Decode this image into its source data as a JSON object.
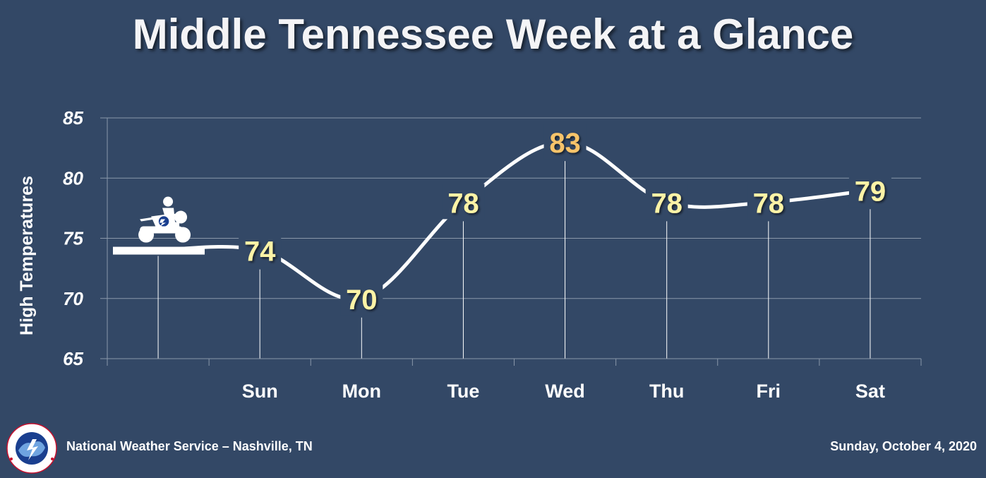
{
  "title": "Middle Tennessee Week at a Glance",
  "footer": {
    "source": "National Weather Service – Nashville, TN",
    "date": "Sunday, October 4, 2020",
    "logo_text": "NATIONAL WEATHER SERVICE"
  },
  "colors": {
    "background": "#334866",
    "line": "#ffffff",
    "value_label": "#fdf3a6",
    "peak_label": "#f8c46a",
    "grid": "#8a97aa"
  },
  "chart_data": {
    "type": "line",
    "ylabel": "High Temperatures",
    "xlabel": "",
    "ylim": [
      65,
      85
    ],
    "yticks": [
      65,
      70,
      75,
      80,
      85
    ],
    "grid": true,
    "categories": [
      "",
      "Sun",
      "Mon",
      "Tue",
      "Wed",
      "Thu",
      "Fri",
      "Sat"
    ],
    "series": [
      {
        "values": [
          74,
          74,
          70,
          78,
          83,
          78,
          78,
          79
        ]
      }
    ],
    "value_labels": [
      "74",
      "70",
      "78",
      "83",
      "78",
      "78",
      "79"
    ],
    "start_marker": "motorcycle-icon"
  }
}
